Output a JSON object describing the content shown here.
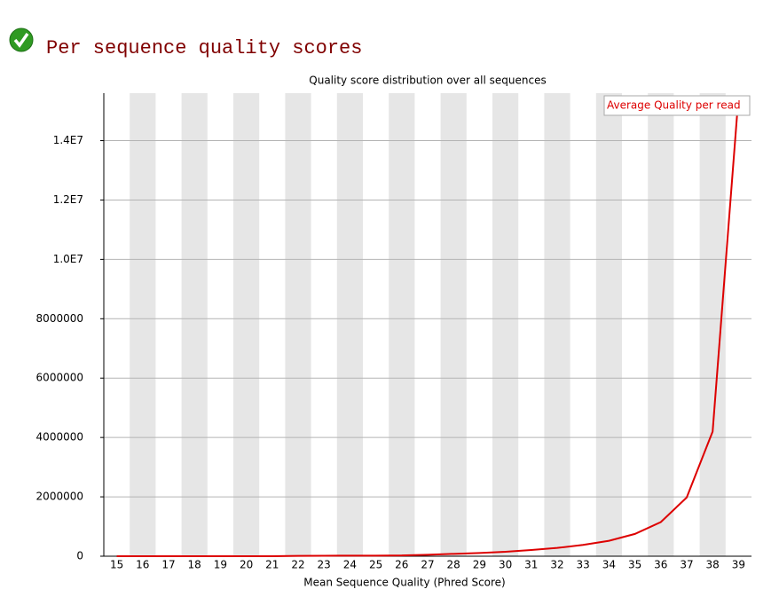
{
  "heading": "Per sequence quality scores",
  "chart_data": {
    "type": "line",
    "title": "Quality score distribution over all sequences",
    "x_label": "Mean Sequence Quality (Phred Score)",
    "categories": [
      "15",
      "16",
      "17",
      "18",
      "19",
      "20",
      "21",
      "22",
      "23",
      "24",
      "25",
      "26",
      "27",
      "28",
      "29",
      "30",
      "31",
      "32",
      "33",
      "34",
      "35",
      "36",
      "37",
      "38",
      "39"
    ],
    "series": [
      {
        "name": "Average Quality per read",
        "color": "#dd0000",
        "values": [
          0,
          0,
          0,
          0,
          0,
          0,
          0,
          10000,
          15000,
          20000,
          20000,
          25000,
          50000,
          80000,
          110000,
          150000,
          210000,
          280000,
          380000,
          520000,
          750000,
          1150000,
          1980000,
          4200000,
          15500000
        ]
      }
    ],
    "ylim": [
      0,
      15600000
    ],
    "yticks": [
      0,
      2000000,
      4000000,
      6000000,
      8000000,
      {
        "value": 10000000,
        "label": "1.0E7"
      },
      {
        "value": 12000000,
        "label": "1.2E7"
      },
      {
        "value": 14000000,
        "label": "1.4E7"
      }
    ],
    "grid": true,
    "legend": "top-right"
  }
}
